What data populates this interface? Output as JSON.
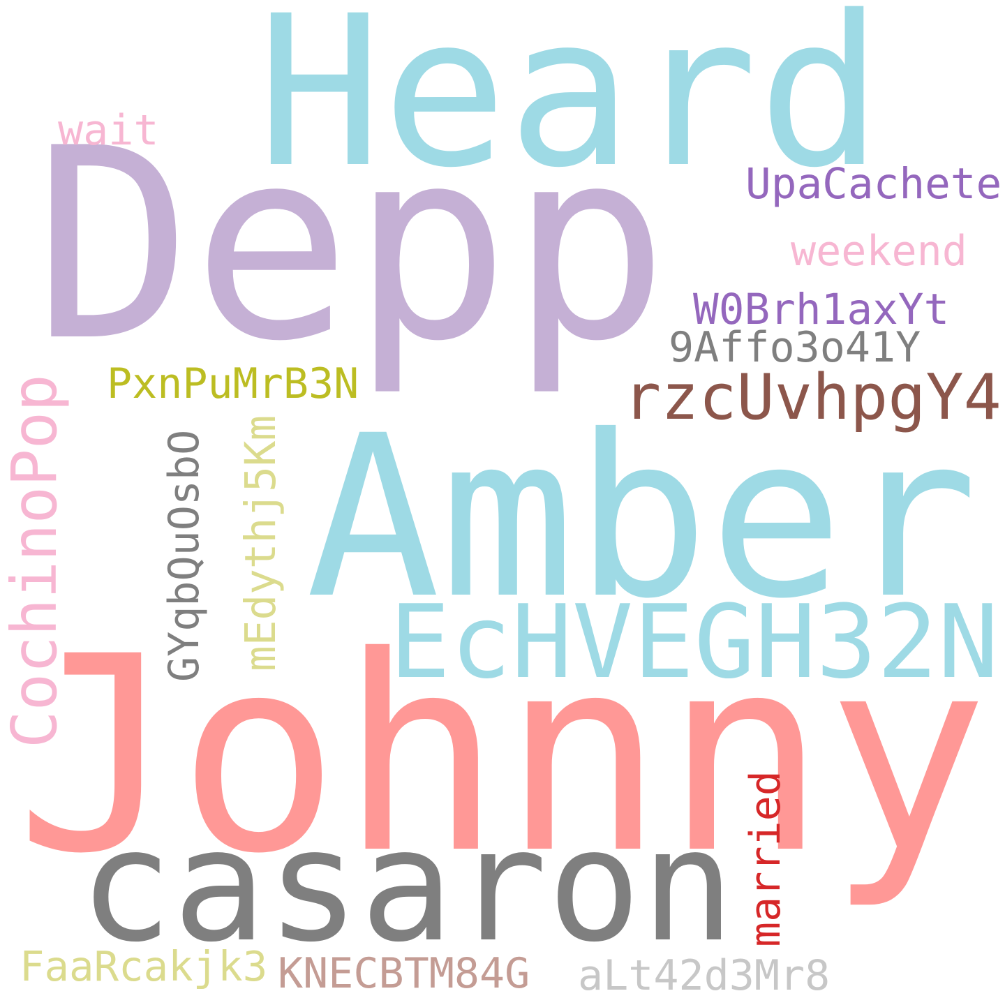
{
  "words": [
    {
      "text": "Heard",
      "color": "#9edae5"
    },
    {
      "text": "Depp",
      "color": "#c5b0d5"
    },
    {
      "text": "Amber",
      "color": "#9edae5"
    },
    {
      "text": "Johnny",
      "color": "#ff9896"
    },
    {
      "text": "casaron",
      "color": "#7f7f7f"
    },
    {
      "text": "EcHVEGH32N",
      "color": "#9edae5"
    },
    {
      "text": "rzcUvhpgY4",
      "color": "#8c564b"
    },
    {
      "text": "UpaCachete",
      "color": "#9467bd"
    },
    {
      "text": "weekend",
      "color": "#f7b6d2"
    },
    {
      "text": "W0Brh1axYt",
      "color": "#9467bd"
    },
    {
      "text": "9Affo3o41Y",
      "color": "#7f7f7f"
    },
    {
      "text": "wait",
      "color": "#f7b6d2"
    },
    {
      "text": "PxnPuMrB3N",
      "color": "#bcbd22"
    },
    {
      "text": "CochinoPop",
      "color": "#f7b6d2"
    },
    {
      "text": "GYqbQuOsbO",
      "color": "#7f7f7f"
    },
    {
      "text": "mEdythj5Km",
      "color": "#dbdb8d"
    },
    {
      "text": "married",
      "color": "#d62728"
    },
    {
      "text": "FaaRcakjk3",
      "color": "#dbdb8d"
    },
    {
      "text": "KNECBTM84G",
      "color": "#c49c94"
    },
    {
      "text": "aLt42d3Mr8",
      "color": "#c7c7c7"
    }
  ]
}
